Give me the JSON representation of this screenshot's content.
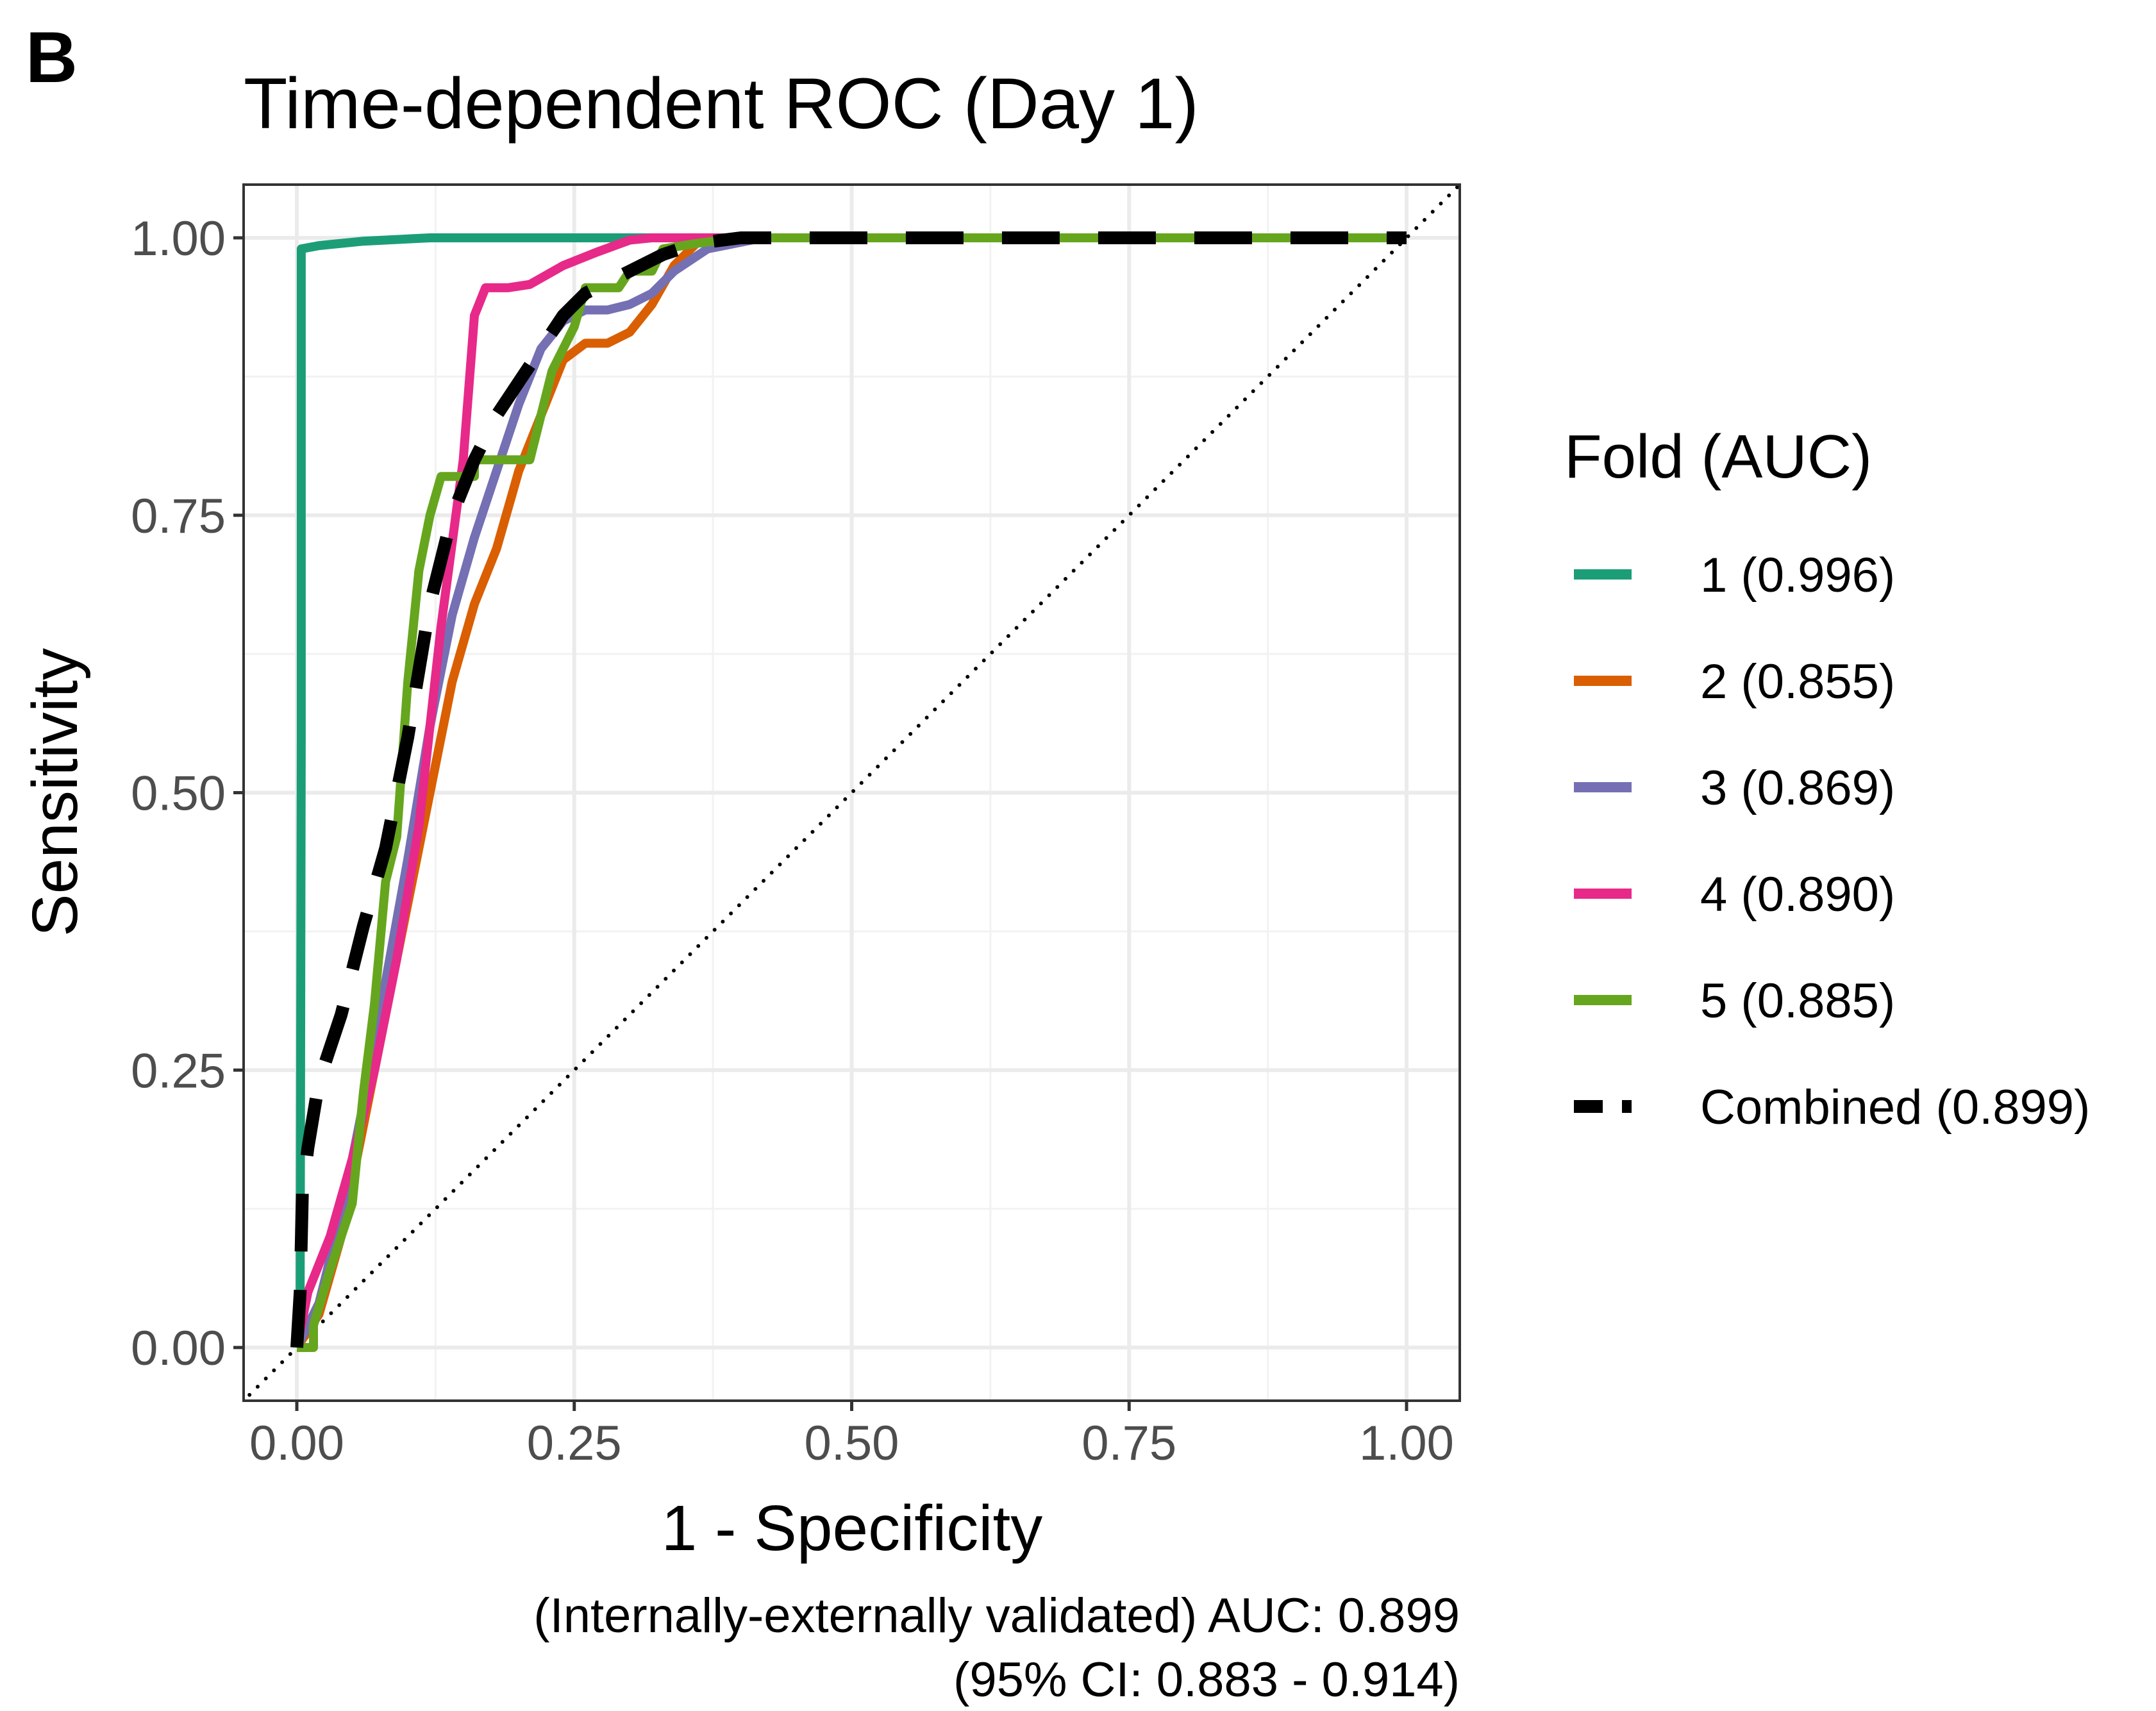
{
  "panel_tag": "B",
  "chart_data": {
    "type": "line",
    "title": "Time-dependent ROC (Day 1)",
    "xlabel": "1 - Specificity",
    "ylabel": "Sensitivity",
    "xlim": [
      0,
      1
    ],
    "ylim": [
      0,
      1
    ],
    "x_ticks": [
      0,
      0.25,
      0.5,
      0.75,
      1
    ],
    "y_ticks": [
      0,
      0.25,
      0.5,
      0.75,
      1
    ],
    "x_tick_labels": [
      "0.00",
      "0.25",
      "0.50",
      "0.75",
      "1.00"
    ],
    "y_tick_labels": [
      "0.00",
      "0.25",
      "0.50",
      "0.75",
      "1.00"
    ],
    "grid": true,
    "legend_title": "Fold (AUC)",
    "legend_position": "right",
    "reference_line": {
      "style": "dotted",
      "color": "#000000",
      "x": [
        -0.05,
        1.05
      ],
      "y": [
        -0.05,
        1.05
      ]
    },
    "series": [
      {
        "name": "1 (0.996)",
        "color": "#1B9E77",
        "dash": "solid",
        "points": [
          [
            0,
            0
          ],
          [
            0.003,
            0.05
          ],
          [
            0.004,
            0.55
          ],
          [
            0.004,
            0.99
          ],
          [
            0.02,
            0.993
          ],
          [
            0.06,
            0.997
          ],
          [
            0.12,
            1.0
          ],
          [
            1.0,
            1.0
          ]
        ]
      },
      {
        "name": "2 (0.855)",
        "color": "#D95F02",
        "dash": "solid",
        "points": [
          [
            0,
            0
          ],
          [
            0.02,
            0.03
          ],
          [
            0.04,
            0.1
          ],
          [
            0.06,
            0.2
          ],
          [
            0.08,
            0.3
          ],
          [
            0.1,
            0.4
          ],
          [
            0.12,
            0.5
          ],
          [
            0.14,
            0.6
          ],
          [
            0.16,
            0.67
          ],
          [
            0.18,
            0.72
          ],
          [
            0.2,
            0.79
          ],
          [
            0.22,
            0.84
          ],
          [
            0.24,
            0.89
          ],
          [
            0.26,
            0.905
          ],
          [
            0.28,
            0.905
          ],
          [
            0.3,
            0.915
          ],
          [
            0.32,
            0.94
          ],
          [
            0.34,
            0.975
          ],
          [
            0.36,
            0.995
          ],
          [
            0.38,
            1.0
          ],
          [
            1.0,
            1.0
          ]
        ]
      },
      {
        "name": "3 (0.869)",
        "color": "#7570B3",
        "dash": "solid",
        "points": [
          [
            0,
            0
          ],
          [
            0.02,
            0.04
          ],
          [
            0.04,
            0.12
          ],
          [
            0.06,
            0.22
          ],
          [
            0.08,
            0.33
          ],
          [
            0.1,
            0.44
          ],
          [
            0.12,
            0.56
          ],
          [
            0.14,
            0.66
          ],
          [
            0.16,
            0.73
          ],
          [
            0.18,
            0.79
          ],
          [
            0.2,
            0.85
          ],
          [
            0.22,
            0.9
          ],
          [
            0.24,
            0.925
          ],
          [
            0.26,
            0.935
          ],
          [
            0.28,
            0.935
          ],
          [
            0.3,
            0.94
          ],
          [
            0.32,
            0.95
          ],
          [
            0.34,
            0.97
          ],
          [
            0.37,
            0.99
          ],
          [
            0.42,
            1.0
          ],
          [
            1.0,
            1.0
          ]
        ]
      },
      {
        "name": "4 (0.890)",
        "color": "#E7298A",
        "dash": "solid",
        "points": [
          [
            0,
            0
          ],
          [
            0.01,
            0.05
          ],
          [
            0.03,
            0.1
          ],
          [
            0.05,
            0.17
          ],
          [
            0.07,
            0.25
          ],
          [
            0.09,
            0.35
          ],
          [
            0.11,
            0.47
          ],
          [
            0.13,
            0.65
          ],
          [
            0.15,
            0.8
          ],
          [
            0.16,
            0.93
          ],
          [
            0.17,
            0.955
          ],
          [
            0.19,
            0.955
          ],
          [
            0.21,
            0.958
          ],
          [
            0.24,
            0.975
          ],
          [
            0.27,
            0.987
          ],
          [
            0.3,
            0.998
          ],
          [
            0.32,
            1.0
          ],
          [
            1.0,
            1.0
          ]
        ]
      },
      {
        "name": "5 (0.885)",
        "color": "#66A61E",
        "dash": "solid",
        "points": [
          [
            0,
            0
          ],
          [
            0.015,
            0.0
          ],
          [
            0.015,
            0.02
          ],
          [
            0.03,
            0.07
          ],
          [
            0.05,
            0.13
          ],
          [
            0.06,
            0.23
          ],
          [
            0.07,
            0.31
          ],
          [
            0.08,
            0.42
          ],
          [
            0.09,
            0.46
          ],
          [
            0.1,
            0.6
          ],
          [
            0.11,
            0.7
          ],
          [
            0.12,
            0.75
          ],
          [
            0.13,
            0.785
          ],
          [
            0.16,
            0.785
          ],
          [
            0.16,
            0.8
          ],
          [
            0.21,
            0.8
          ],
          [
            0.22,
            0.84
          ],
          [
            0.23,
            0.88
          ],
          [
            0.25,
            0.92
          ],
          [
            0.26,
            0.955
          ],
          [
            0.29,
            0.955
          ],
          [
            0.3,
            0.97
          ],
          [
            0.32,
            0.97
          ],
          [
            0.33,
            0.99
          ],
          [
            0.36,
            0.995
          ],
          [
            0.4,
            1.0
          ],
          [
            1.0,
            1.0
          ]
        ]
      },
      {
        "name": "Combined (0.899)",
        "color": "#000000",
        "dash": "dashed",
        "points": [
          [
            0,
            0
          ],
          [
            0.003,
            0.05
          ],
          [
            0.005,
            0.14
          ],
          [
            0.01,
            0.18
          ],
          [
            0.02,
            0.24
          ],
          [
            0.04,
            0.3
          ],
          [
            0.06,
            0.38
          ],
          [
            0.08,
            0.45
          ],
          [
            0.1,
            0.55
          ],
          [
            0.12,
            0.67
          ],
          [
            0.14,
            0.75
          ],
          [
            0.16,
            0.8
          ],
          [
            0.18,
            0.84
          ],
          [
            0.2,
            0.87
          ],
          [
            0.22,
            0.9
          ],
          [
            0.24,
            0.93
          ],
          [
            0.26,
            0.95
          ],
          [
            0.28,
            0.96
          ],
          [
            0.3,
            0.97
          ],
          [
            0.33,
            0.985
          ],
          [
            0.36,
            0.995
          ],
          [
            0.4,
            1.0
          ],
          [
            1.0,
            1.0
          ]
        ]
      }
    ],
    "caption_lines": [
      "(Internally-externally validated) AUC: 0.899",
      "(95% CI: 0.883 - 0.914)"
    ]
  }
}
